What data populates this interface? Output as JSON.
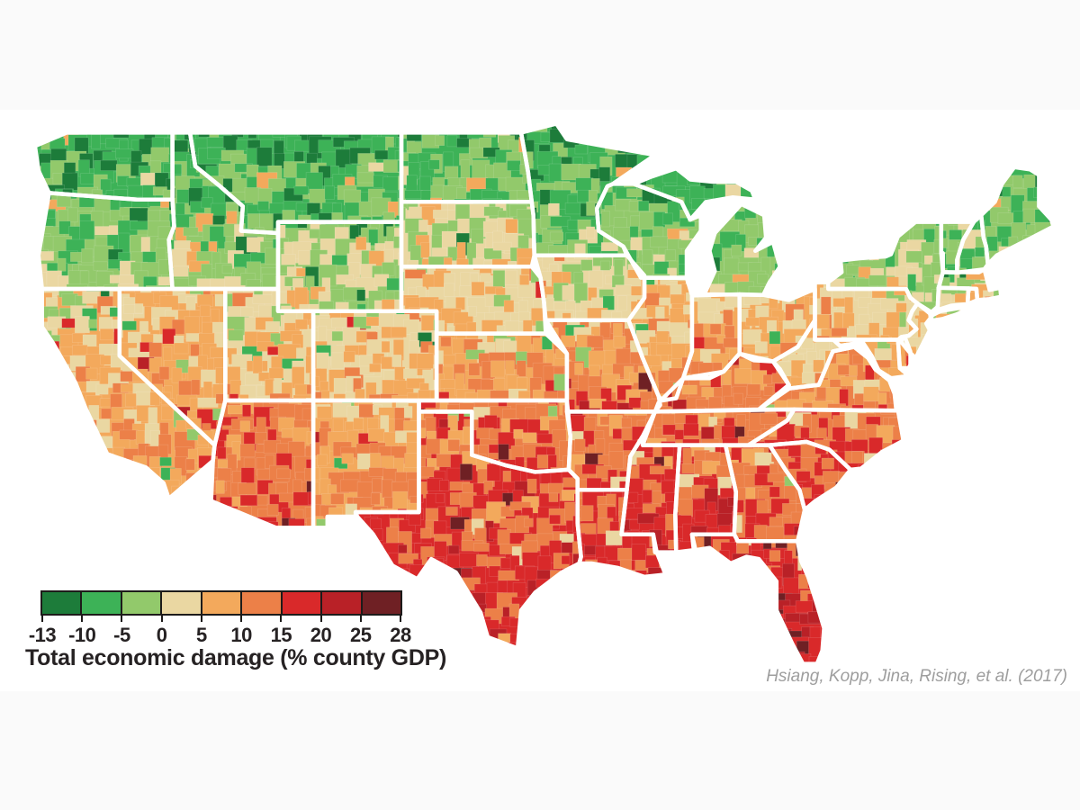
{
  "page": {
    "margin_band_color": "#fafafa",
    "canvas_color": "#ffffff"
  },
  "legend": {
    "title": "Total economic damage (% county GDP)",
    "tick_labels": [
      "-13",
      "-10",
      "-5",
      "0",
      "5",
      "10",
      "15",
      "20",
      "25",
      "28"
    ],
    "bin_colors": [
      "#1d7c3a",
      "#3db257",
      "#92c96b",
      "#ead7a2",
      "#f3a95c",
      "#ec8048",
      "#d9292a",
      "#b92127",
      "#6f2024"
    ],
    "axis_color": "#1d1b1a",
    "text_color": "#262223"
  },
  "attribution": {
    "text": "Hsiang, Kopp, Jina, Rising, et al. (2017)",
    "color": "#9e9e9e"
  },
  "map": {
    "region": "Contiguous United States county-level choropleth of total economic damage (% county GDP)",
    "unit": "county",
    "state_border_color": "#ffffff",
    "water_color": "#ffffff",
    "states": [
      {
        "id": "WA",
        "name": "Washington",
        "tone": "green"
      },
      {
        "id": "OR",
        "name": "Oregon",
        "tone": "green"
      },
      {
        "id": "CA",
        "name": "California",
        "tone": "tan-green"
      },
      {
        "id": "NV",
        "name": "Nevada",
        "tone": "tan"
      },
      {
        "id": "ID",
        "name": "Idaho",
        "tone": "green"
      },
      {
        "id": "MT",
        "name": "Montana",
        "tone": "green"
      },
      {
        "id": "WY",
        "name": "Wyoming",
        "tone": "tan-green"
      },
      {
        "id": "UT",
        "name": "Utah",
        "tone": "tan-green"
      },
      {
        "id": "CO",
        "name": "Colorado",
        "tone": "tan-green"
      },
      {
        "id": "AZ",
        "name": "Arizona",
        "tone": "light-orange"
      },
      {
        "id": "NM",
        "name": "New Mexico",
        "tone": "tan-green"
      },
      {
        "id": "ND",
        "name": "North Dakota",
        "tone": "tan-green"
      },
      {
        "id": "SD",
        "name": "South Dakota",
        "tone": "tan"
      },
      {
        "id": "NE",
        "name": "Nebraska",
        "tone": "tan"
      },
      {
        "id": "KS",
        "name": "Kansas",
        "tone": "light-orange"
      },
      {
        "id": "OK",
        "name": "Oklahoma",
        "tone": "orange"
      },
      {
        "id": "TX",
        "name": "Texas",
        "tone": "orange-red"
      },
      {
        "id": "MN",
        "name": "Minnesota",
        "tone": "green"
      },
      {
        "id": "IA",
        "name": "Iowa",
        "tone": "tan"
      },
      {
        "id": "MO",
        "name": "Missouri",
        "tone": "orange"
      },
      {
        "id": "AR",
        "name": "Arkansas",
        "tone": "orange"
      },
      {
        "id": "LA",
        "name": "Louisiana",
        "tone": "orange-red"
      },
      {
        "id": "WI",
        "name": "Wisconsin",
        "tone": "green"
      },
      {
        "id": "MI",
        "name": "Michigan",
        "tone": "green"
      },
      {
        "id": "IL",
        "name": "Illinois",
        "tone": "light-orange"
      },
      {
        "id": "IN",
        "name": "Indiana",
        "tone": "light-orange"
      },
      {
        "id": "OH",
        "name": "Ohio",
        "tone": "tan"
      },
      {
        "id": "KY",
        "name": "Kentucky",
        "tone": "orange"
      },
      {
        "id": "TN",
        "name": "Tennessee",
        "tone": "orange"
      },
      {
        "id": "MS",
        "name": "Mississippi",
        "tone": "orange"
      },
      {
        "id": "AL",
        "name": "Alabama",
        "tone": "orange"
      },
      {
        "id": "GA",
        "name": "Georgia",
        "tone": "orange-red"
      },
      {
        "id": "FL",
        "name": "Florida",
        "tone": "orange-red"
      },
      {
        "id": "SC",
        "name": "South Carolina",
        "tone": "orange"
      },
      {
        "id": "NC",
        "name": "North Carolina",
        "tone": "orange"
      },
      {
        "id": "VA",
        "name": "Virginia",
        "tone": "light-orange"
      },
      {
        "id": "WV",
        "name": "West Virginia",
        "tone": "tan-green"
      },
      {
        "id": "MD",
        "name": "Maryland",
        "tone": "light-orange"
      },
      {
        "id": "DE",
        "name": "Delaware",
        "tone": "light-orange"
      },
      {
        "id": "PA",
        "name": "Pennsylvania",
        "tone": "tan"
      },
      {
        "id": "NJ",
        "name": "New Jersey",
        "tone": "tan"
      },
      {
        "id": "NY",
        "name": "New York",
        "tone": "green"
      },
      {
        "id": "CT",
        "name": "Connecticut",
        "tone": "tan"
      },
      {
        "id": "RI",
        "name": "Rhode Island",
        "tone": "tan"
      },
      {
        "id": "MA",
        "name": "Massachusetts",
        "tone": "tan-green"
      },
      {
        "id": "VT",
        "name": "Vermont",
        "tone": "green"
      },
      {
        "id": "NH",
        "name": "New Hampshire",
        "tone": "green"
      },
      {
        "id": "ME",
        "name": "Maine",
        "tone": "green"
      }
    ]
  },
  "chart_data": {
    "type": "choropleth_map",
    "title": "Total economic damage (% county GDP)",
    "legend_bin_edges": [
      -13,
      -10,
      -5,
      0,
      5,
      10,
      15,
      20,
      25,
      28
    ],
    "legend_colors": [
      "#1d7c3a",
      "#3db257",
      "#92c96b",
      "#ead7a2",
      "#f3a95c",
      "#ec8048",
      "#d9292a",
      "#b92127",
      "#6f2024"
    ],
    "legend_position": "bottom-left",
    "source": "Hsiang, Kopp, Jina, Rising, et al. (2017)",
    "tone_to_damage_pct": {
      "green": [
        -10,
        -2
      ],
      "tan-green": [
        -3,
        2
      ],
      "tan": [
        0,
        4
      ],
      "light-orange": [
        3,
        8
      ],
      "orange": [
        6,
        13
      ],
      "orange-red": [
        10,
        25
      ]
    },
    "pattern": "Damage rises from north to south: gains (negative damage, greens, about -13 to 0%) across the Pacific Northwest, northern Rockies, Upper Midwest, Great Lakes and northern New England; near-zero (tans) across the central Plains, Iowa, Nebraska, Pennsylvania and the Northeast corridor; moderate losses (light orange to orange, 5-15%) through Kansas, Missouri, the Ohio Valley, Mid-Atlantic and Carolinas; severe losses (reds, 15-28% of county GDP) across Texas, the Gulf Coast, the Deep South, Florida, southern Arizona and southern Nevada."
  }
}
